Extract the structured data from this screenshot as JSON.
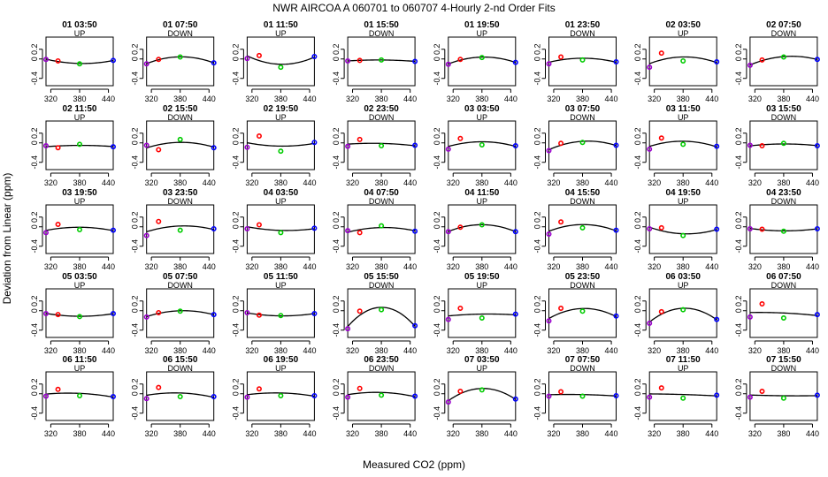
{
  "chart_data": {
    "type": "scatter",
    "title": "NWR   AIRCOA A   060701 to 060707   4-Hourly 2-nd Order Fits",
    "xlabel": "Measured CO2 (ppm)",
    "ylabel": "Deviation from Linear (ppm)",
    "xlim": [
      310,
      450
    ],
    "ylim": [
      -0.55,
      0.45
    ],
    "xticks": [
      320,
      380,
      440
    ],
    "yticks": [
      -0.4,
      0,
      0.2
    ],
    "ytick_labels": [
      "-0.4",
      "0",
      "0.2"
    ],
    "x_standards": [
      310,
      335,
      380,
      450
    ],
    "point_colors": [
      "#9900cc",
      "#ff0000",
      "#00cc00",
      "#0000ff"
    ],
    "fit_color": "#000000",
    "panels": [
      {
        "label": "01 03:50",
        "mode": "UP",
        "y": [
          -0.01,
          -0.04,
          -0.1,
          -0.03
        ]
      },
      {
        "label": "01 07:50",
        "mode": "DOWN",
        "y": [
          -0.1,
          -0.01,
          0.04,
          -0.08
        ]
      },
      {
        "label": "01 11:50",
        "mode": "UP",
        "y": [
          0.01,
          0.07,
          -0.17,
          0.05
        ]
      },
      {
        "label": "01 15:50",
        "mode": "DOWN",
        "y": [
          -0.04,
          -0.03,
          -0.02,
          -0.05
        ]
      },
      {
        "label": "01 19:50",
        "mode": "UP",
        "y": [
          -0.11,
          -0.01,
          0.03,
          -0.07
        ]
      },
      {
        "label": "01 23:50",
        "mode": "DOWN",
        "y": [
          -0.1,
          0.04,
          -0.02,
          -0.06
        ]
      },
      {
        "label": "02 03:50",
        "mode": "UP",
        "y": [
          -0.17,
          0.12,
          -0.04,
          -0.06
        ]
      },
      {
        "label": "02 07:50",
        "mode": "DOWN",
        "y": [
          -0.13,
          -0.02,
          0.04,
          -0.01
        ]
      },
      {
        "label": "02 11:50",
        "mode": "UP",
        "y": [
          -0.06,
          -0.1,
          -0.03,
          -0.08
        ]
      },
      {
        "label": "02 15:50",
        "mode": "DOWN",
        "y": [
          -0.05,
          -0.14,
          0.07,
          -0.1
        ]
      },
      {
        "label": "02 19:50",
        "mode": "UP",
        "y": [
          -0.09,
          0.14,
          -0.17,
          0.01
        ]
      },
      {
        "label": "02 23:50",
        "mode": "DOWN",
        "y": [
          -0.07,
          0.07,
          -0.06,
          -0.05
        ]
      },
      {
        "label": "03 03:50",
        "mode": "UP",
        "y": [
          -0.13,
          0.09,
          -0.04,
          -0.06
        ]
      },
      {
        "label": "03 07:50",
        "mode": "DOWN",
        "y": [
          -0.16,
          -0.01,
          0.01,
          -0.05
        ]
      },
      {
        "label": "03 11:50",
        "mode": "UP",
        "y": [
          -0.13,
          0.1,
          -0.03,
          -0.07
        ]
      },
      {
        "label": "03 15:50",
        "mode": "DOWN",
        "y": [
          -0.05,
          -0.06,
          -0.01,
          -0.06
        ]
      },
      {
        "label": "03 19:50",
        "mode": "UP",
        "y": [
          -0.12,
          0.05,
          -0.06,
          -0.07
        ]
      },
      {
        "label": "03 23:50",
        "mode": "DOWN",
        "y": [
          -0.18,
          0.11,
          -0.07,
          -0.04
        ]
      },
      {
        "label": "04 03:50",
        "mode": "UP",
        "y": [
          -0.04,
          0.04,
          -0.12,
          -0.03
        ]
      },
      {
        "label": "04 07:50",
        "mode": "DOWN",
        "y": [
          -0.08,
          -0.12,
          0.02,
          -0.09
        ]
      },
      {
        "label": "04 11:50",
        "mode": "UP",
        "y": [
          -0.1,
          -0.01,
          0.04,
          -0.1
        ]
      },
      {
        "label": "04 15:50",
        "mode": "DOWN",
        "y": [
          -0.15,
          0.1,
          -0.02,
          -0.07
        ]
      },
      {
        "label": "04 19:50",
        "mode": "UP",
        "y": [
          -0.04,
          -0.02,
          -0.18,
          -0.05
        ]
      },
      {
        "label": "04 23:50",
        "mode": "DOWN",
        "y": [
          -0.04,
          -0.05,
          -0.09,
          -0.04
        ]
      },
      {
        "label": "05 03:50",
        "mode": "UP",
        "y": [
          -0.06,
          -0.08,
          -0.12,
          -0.06
        ]
      },
      {
        "label": "05 07:50",
        "mode": "DOWN",
        "y": [
          -0.13,
          -0.04,
          -0.01,
          -0.08
        ]
      },
      {
        "label": "05 11:50",
        "mode": "UP",
        "y": [
          -0.04,
          -0.09,
          -0.1,
          -0.06
        ]
      },
      {
        "label": "05 15:50",
        "mode": "DOWN",
        "y": [
          -0.37,
          -0.01,
          0.02,
          -0.31
        ]
      },
      {
        "label": "05 19:50",
        "mode": "UP",
        "y": [
          -0.18,
          0.05,
          -0.15,
          -0.07
        ]
      },
      {
        "label": "05 23:50",
        "mode": "DOWN",
        "y": [
          -0.21,
          0.05,
          -0.01,
          -0.11
        ]
      },
      {
        "label": "06 03:50",
        "mode": "UP",
        "y": [
          -0.26,
          -0.02,
          0.02,
          -0.18
        ]
      },
      {
        "label": "06 07:50",
        "mode": "DOWN",
        "y": [
          -0.13,
          0.14,
          -0.15,
          -0.08
        ]
      },
      {
        "label": "06 11:50",
        "mode": "UP",
        "y": [
          -0.05,
          0.09,
          -0.04,
          -0.06
        ]
      },
      {
        "label": "06 15:50",
        "mode": "DOWN",
        "y": [
          -0.1,
          0.13,
          -0.06,
          -0.06
        ]
      },
      {
        "label": "06 19:50",
        "mode": "UP",
        "y": [
          -0.07,
          0.1,
          -0.04,
          -0.04
        ]
      },
      {
        "label": "06 23:50",
        "mode": "DOWN",
        "y": [
          -0.07,
          0.11,
          -0.03,
          -0.05
        ]
      },
      {
        "label": "07 03:50",
        "mode": "UP",
        "y": [
          -0.17,
          0.05,
          0.08,
          -0.11
        ]
      },
      {
        "label": "07 07:50",
        "mode": "DOWN",
        "y": [
          -0.05,
          0.04,
          -0.05,
          -0.04
        ]
      },
      {
        "label": "07 11:50",
        "mode": "UP",
        "y": [
          -0.07,
          0.12,
          -0.09,
          -0.03
        ]
      },
      {
        "label": "07 15:50",
        "mode": "DOWN",
        "y": [
          -0.07,
          0.05,
          -0.09,
          -0.03
        ]
      }
    ]
  }
}
